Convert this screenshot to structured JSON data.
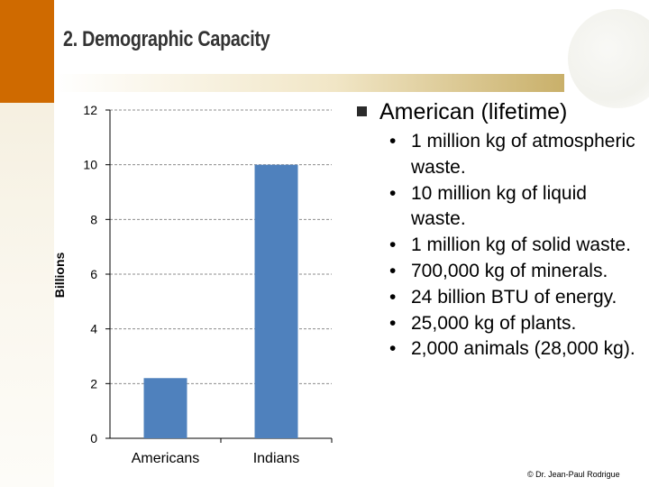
{
  "slide": {
    "title": "2. Demographic Capacity",
    "credit": "© Dr. Jean-Paul Rodrigue"
  },
  "chart_data": {
    "type": "bar",
    "categories": [
      "Americans",
      "Indians"
    ],
    "values": [
      2.2,
      10
    ],
    "ylabel": "Billions",
    "ylim": [
      0,
      12
    ],
    "yticks": [
      0,
      2,
      4,
      6,
      8,
      10,
      12
    ],
    "grid": true,
    "bar_color": "#4f81bd"
  },
  "panel": {
    "heading": "American (lifetime)",
    "items": [
      "1 million kg of atmospheric waste.",
      "10 million kg of liquid waste.",
      "1 million kg of solid waste.",
      "700,000 kg of minerals.",
      "24 billion BTU of energy.",
      "25,000 kg of plants.",
      "2,000 animals (28,000 kg)."
    ]
  },
  "colors": {
    "accent": "#cf6a00",
    "bar": "#4f81bd"
  }
}
